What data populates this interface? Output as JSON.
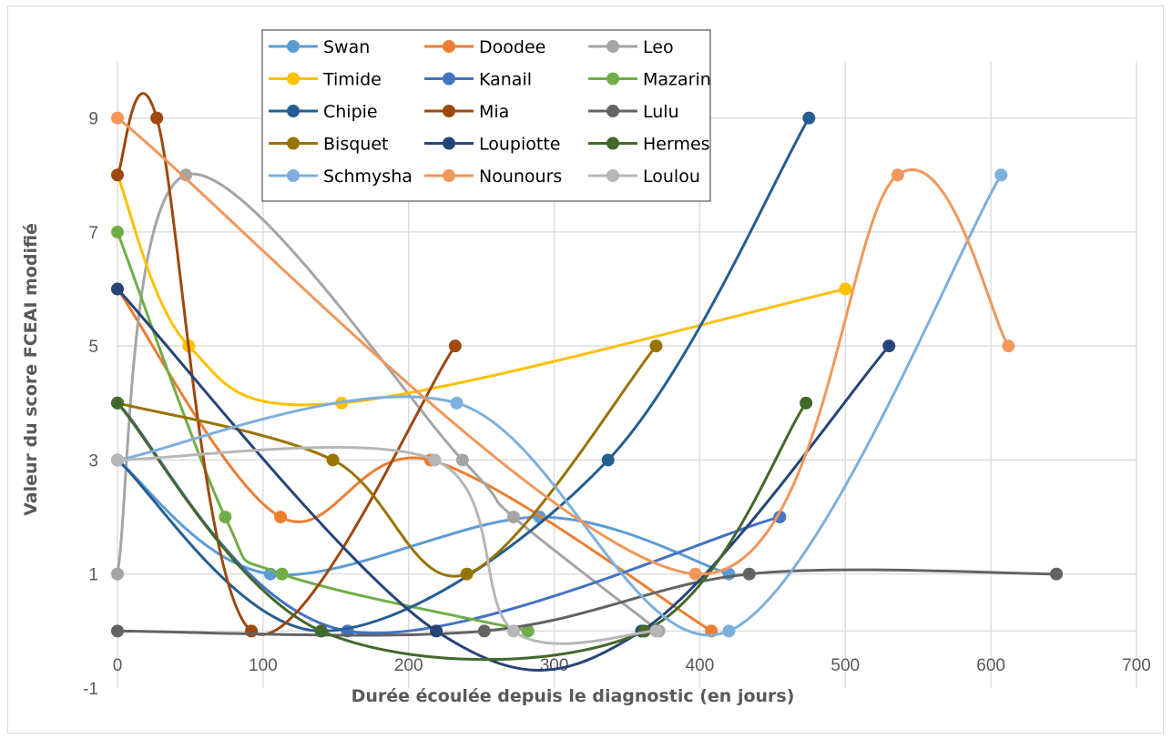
{
  "chart_data": {
    "type": "line",
    "smooth": true,
    "xlabel": "Durée écoulée depuis le diagnostic (en jours)",
    "ylabel": "Valeur du score FCEAI modifié",
    "xlim": [
      0,
      700
    ],
    "ylim": [
      -1,
      10
    ],
    "x_ticks": [
      "0",
      "100",
      "200",
      "300",
      "400",
      "500",
      "600",
      "700"
    ],
    "y_ticks": [
      "-1",
      "1",
      "3",
      "5",
      "7",
      "9"
    ],
    "grid": "vertical and horizontal at labeled ticks",
    "legend_position": "top",
    "series": [
      {
        "name": "Swan",
        "color": "#5B9BD5",
        "points": [
          [
            0,
            3
          ],
          [
            105,
            1
          ],
          [
            290,
            2
          ],
          [
            420,
            1
          ]
        ]
      },
      {
        "name": "Doodee",
        "color": "#ED7D31",
        "points": [
          [
            0,
            6
          ],
          [
            112,
            2
          ],
          [
            215,
            3
          ],
          [
            408,
            0
          ]
        ]
      },
      {
        "name": "Leo",
        "color": "#A5A5A5",
        "points": [
          [
            0,
            1
          ],
          [
            47,
            8
          ],
          [
            237,
            3
          ],
          [
            272,
            2
          ],
          [
            372,
            0
          ]
        ]
      },
      {
        "name": "Timide",
        "color": "#FFC000",
        "points": [
          [
            0,
            8
          ],
          [
            49,
            5
          ],
          [
            154,
            4
          ],
          [
            500,
            6
          ]
        ]
      },
      {
        "name": "Kanail",
        "color": "#4472C4",
        "points": [
          [
            0,
            4
          ],
          [
            158,
            0
          ],
          [
            455,
            2
          ]
        ]
      },
      {
        "name": "Mazarin",
        "color": "#70AD47",
        "points": [
          [
            0,
            7
          ],
          [
            74,
            2
          ],
          [
            113,
            1
          ],
          [
            282,
            0
          ]
        ]
      },
      {
        "name": "Chipie",
        "color": "#255E91",
        "points": [
          [
            0,
            3
          ],
          [
            140,
            0
          ],
          [
            337,
            3
          ],
          [
            475,
            9
          ]
        ]
      },
      {
        "name": "Mia",
        "color": "#9E480E",
        "points": [
          [
            0,
            8
          ],
          [
            27,
            9
          ],
          [
            92,
            0
          ],
          [
            232,
            5
          ]
        ]
      },
      {
        "name": "Lulu",
        "color": "#636363",
        "points": [
          [
            0,
            0
          ],
          [
            252,
            0
          ],
          [
            434,
            1
          ],
          [
            645,
            1
          ]
        ]
      },
      {
        "name": "Bisquet",
        "color": "#997300",
        "points": [
          [
            0,
            4
          ],
          [
            148,
            3
          ],
          [
            240,
            1
          ],
          [
            370,
            5
          ]
        ]
      },
      {
        "name": "Loupiotte",
        "color": "#264478",
        "points": [
          [
            0,
            6
          ],
          [
            219,
            0
          ],
          [
            360,
            0
          ],
          [
            530,
            5
          ]
        ]
      },
      {
        "name": "Hermes",
        "color": "#43682B",
        "points": [
          [
            0,
            4
          ],
          [
            140,
            0
          ],
          [
            362,
            0
          ],
          [
            473,
            4
          ]
        ]
      },
      {
        "name": "Schmysha",
        "color": "#7CAFDD",
        "points": [
          [
            0,
            3
          ],
          [
            233,
            4
          ],
          [
            420,
            0
          ],
          [
            607,
            8
          ]
        ]
      },
      {
        "name": "Nounours",
        "color": "#F1975A",
        "points": [
          [
            0,
            9
          ],
          [
            397,
            1
          ],
          [
            536,
            8
          ],
          [
            612,
            5
          ]
        ]
      },
      {
        "name": "Loulou",
        "color": "#B7B7B7",
        "points": [
          [
            0,
            3
          ],
          [
            218,
            3
          ],
          [
            272,
            0
          ],
          [
            370,
            0
          ]
        ]
      }
    ]
  }
}
